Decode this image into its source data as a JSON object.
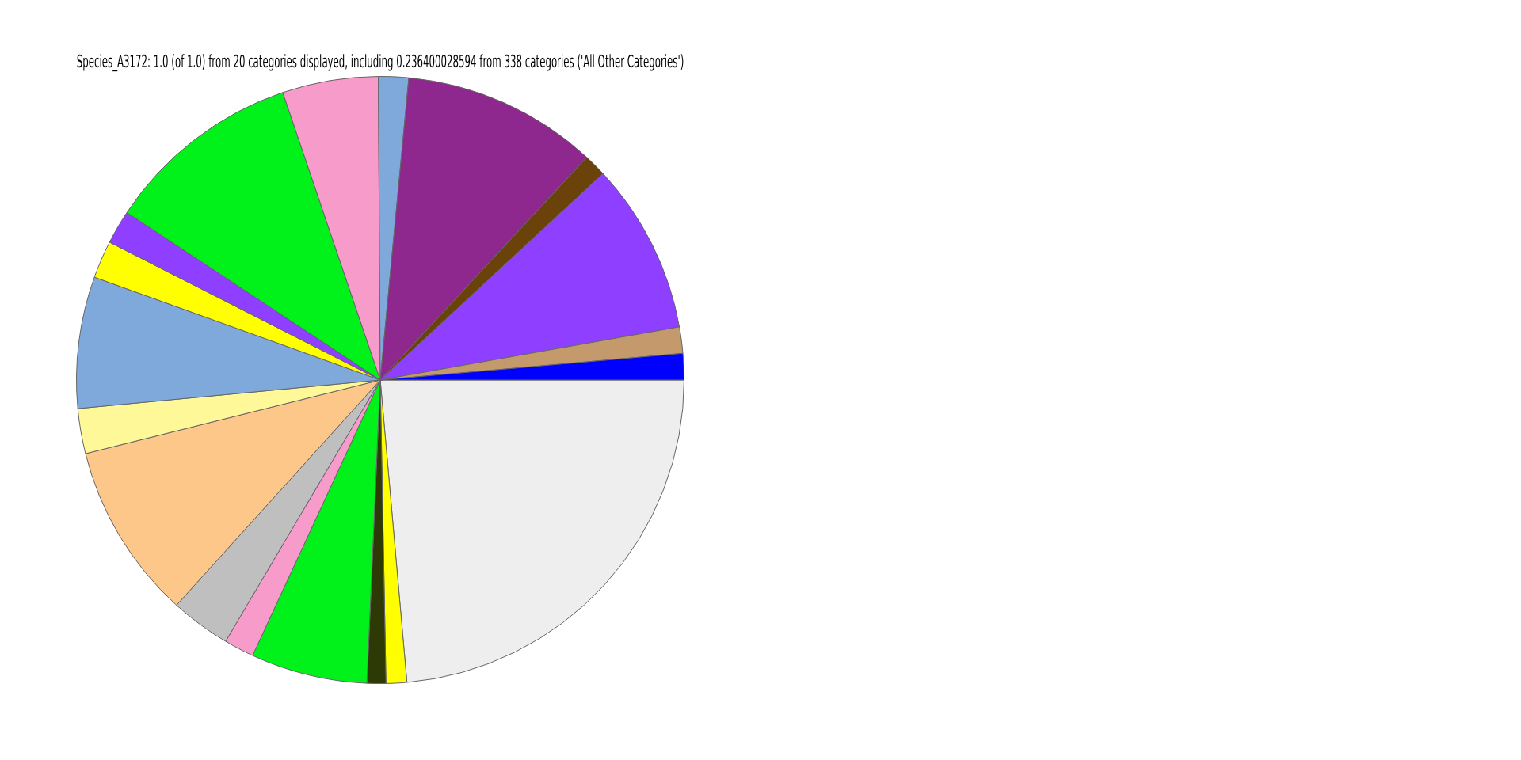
{
  "chart_data": {
    "type": "pie",
    "title": "Species_A3172: 1.0 (of 1.0) from 20 categories displayed, including 0.236400028594 from 338 categories ('All Other Categories')",
    "categories": [
      null,
      null,
      null,
      null,
      null,
      null,
      null,
      null,
      null,
      null,
      null,
      null,
      null,
      null,
      null,
      null,
      null,
      null,
      null
    ],
    "values": [
      1.4,
      1.4,
      9.1,
      1.2,
      10.4,
      1.6,
      5.1,
      10.5,
      1.8,
      2.0,
      7.0,
      2.4,
      9.4,
      3.2,
      1.6,
      6.2,
      1.0,
      1.1,
      23.6
    ],
    "colors": [
      "#0000ff",
      "#c49a6c",
      "#8e3fff",
      "#6b4209",
      "#8e278e",
      "#7ea9da",
      "#f69bca",
      "#00f21a",
      "#8e3fff",
      "#ffff00",
      "#7ea9da",
      "#fff899",
      "#fdc78a",
      "#bfbfbf",
      "#f69bca",
      "#00f21a",
      "#2d3a06",
      "#ffff00",
      "#eeeeee"
    ],
    "legend": false
  }
}
